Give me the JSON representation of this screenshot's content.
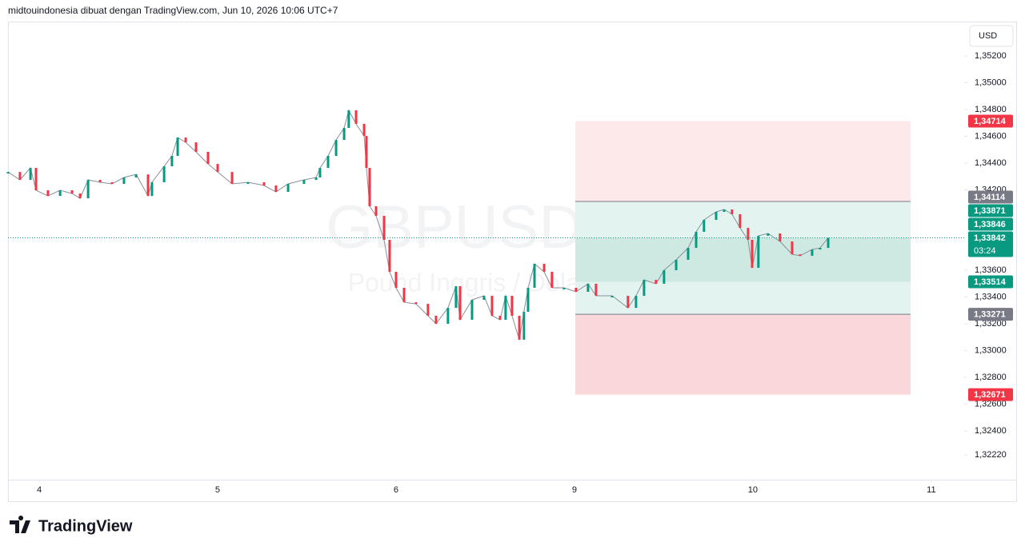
{
  "header": "midtouindonesia dibuat dengan TradingView.com, Jun 10, 2026 10:06 UTC+7",
  "currency_button": "USD",
  "logo": "TradingView",
  "chart_data": {
    "type": "price",
    "symbol": "GBPUSD, 5",
    "description": "Pound Inggris / Dolar AS",
    "up_color": "#089981",
    "down_color": "#f23645",
    "line_color": "#8a8f9c",
    "x": [
      -0.175,
      -0.108,
      -0.049,
      -0.018,
      0.049,
      0.117,
      0.184,
      0.229,
      0.274,
      0.341,
      0.408,
      0.475,
      0.543,
      0.61,
      0.632,
      0.7,
      0.744,
      0.776,
      0.821,
      0.879,
      0.946,
      1.0,
      1.081,
      1.17,
      1.26,
      1.327,
      1.395,
      1.484,
      1.552,
      1.574,
      1.619,
      1.664,
      1.709,
      1.735,
      1.776,
      1.821,
      1.834,
      1.852,
      1.888,
      1.933,
      1.964,
      2.0,
      2.045,
      2.112,
      2.179,
      2.224,
      2.291,
      2.336,
      2.359,
      2.426,
      2.493,
      2.538,
      2.583,
      2.614,
      2.65,
      2.691,
      2.717,
      2.74,
      2.776,
      2.83,
      2.874,
      2.942,
      3.009,
      3.076,
      3.121,
      3.211,
      3.3,
      3.345,
      3.39,
      3.457,
      3.502,
      3.57,
      3.637,
      3.682,
      3.726,
      3.794,
      3.839,
      3.883,
      3.928,
      3.973,
      3.996,
      4.031,
      4.085,
      4.152,
      4.22,
      4.265,
      4.332,
      4.377,
      4.422
    ],
    "values": [
      1.34334,
      1.34275,
      1.34364,
      1.34197,
      1.34155,
      1.34197,
      1.34173,
      1.34137,
      1.34275,
      1.34257,
      1.34245,
      1.34293,
      1.34316,
      1.34155,
      1.34257,
      1.34376,
      1.34454,
      1.34591,
      1.34555,
      1.34484,
      1.34394,
      1.34334,
      1.34245,
      1.34257,
      1.34233,
      1.34185,
      1.34245,
      1.34275,
      1.34293,
      1.34364,
      1.34454,
      1.34573,
      1.34663,
      1.34794,
      1.34693,
      1.34603,
      1.34364,
      1.34078,
      1.34006,
      1.33827,
      1.33588,
      1.33469,
      1.33361,
      1.33349,
      1.3326,
      1.332,
      1.33319,
      1.33481,
      1.3323,
      1.33379,
      1.33409,
      1.3326,
      1.3323,
      1.33409,
      1.3326,
      1.33081,
      1.3329,
      1.33469,
      1.33648,
      1.33588,
      1.33469,
      1.33469,
      1.33439,
      1.33499,
      1.33409,
      1.33409,
      1.33319,
      1.33409,
      1.33528,
      1.33499,
      1.336,
      1.33678,
      1.33767,
      1.33887,
      1.33976,
      1.34036,
      1.34054,
      1.34018,
      1.33916,
      1.33827,
      1.33618,
      1.33857,
      1.33875,
      1.33815,
      1.33719,
      1.33708,
      1.33755,
      1.33767,
      1.33842
    ],
    "xlim": [
      -0.175,
      5.162
    ],
    "xticks": [
      {
        "value": 0,
        "label": "4"
      },
      {
        "value": 1,
        "label": "5"
      },
      {
        "value": 2,
        "label": "6"
      },
      {
        "value": 3,
        "label": "9"
      },
      {
        "value": 4,
        "label": "10"
      },
      {
        "value": 5,
        "label": "11"
      }
    ],
    "ylim": [
      1.32036,
      1.35451
    ],
    "yticks": [
      {
        "value": 1.352,
        "label": "1,35200"
      },
      {
        "value": 1.35,
        "label": "1,35000"
      },
      {
        "value": 1.348,
        "label": "1,34800"
      },
      {
        "value": 1.346,
        "label": "1,34600"
      },
      {
        "value": 1.344,
        "label": "1,34400"
      },
      {
        "value": 1.342,
        "label": "1,34200"
      },
      {
        "value": 1.336,
        "label": "1,33600"
      },
      {
        "value": 1.334,
        "label": "1,33400"
      },
      {
        "value": 1.332,
        "label": "1,33200"
      },
      {
        "value": 1.33,
        "label": "1,33000"
      },
      {
        "value": 1.328,
        "label": "1,32800"
      },
      {
        "value": 1.326,
        "label": "1,32600"
      },
      {
        "value": 1.324,
        "label": "1,32400"
      },
      {
        "value": 1.3222,
        "label": "1,32220"
      }
    ],
    "last_price_line": true,
    "zones": [
      {
        "from": 1.34114,
        "to": 1.34714,
        "color": "#fde9ea"
      },
      {
        "from": 1.33271,
        "to": 1.34114,
        "color": "#e3f3ef"
      },
      {
        "from": 1.33514,
        "to": 1.33842,
        "color": "#cde9e2"
      },
      {
        "from": 1.32671,
        "to": 1.33271,
        "color": "#f9d7db"
      }
    ],
    "zone_lines": [
      1.34114,
      1.33271
    ],
    "price_tags": [
      {
        "value": 1.34714,
        "label": "1,34714",
        "color": "#f23645"
      },
      {
        "value": 1.34114,
        "label": "1,34114",
        "color": "#787b86"
      },
      {
        "value": 1.33871,
        "label": "1,33871",
        "color": "#089981"
      },
      {
        "value": 1.33846,
        "label": "1,33846",
        "color": "#089981"
      },
      {
        "value": 1.33842,
        "label": "1,33842",
        "color": "#089981",
        "countdown": "03:24"
      },
      {
        "value": 1.33514,
        "label": "1,33514",
        "color": "#089981"
      },
      {
        "value": 1.33271,
        "label": "1,33271",
        "color": "#787b86"
      },
      {
        "value": 1.32671,
        "label": "1,32671",
        "color": "#f23645"
      }
    ]
  }
}
